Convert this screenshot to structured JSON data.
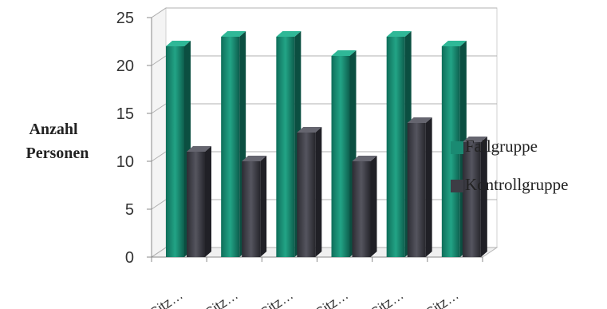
{
  "chart_data": {
    "type": "bar",
    "categories": [
      "Sitz…",
      "Sitz…",
      "Sitz…",
      "Sitz…",
      "Sitz…",
      "Sitz…"
    ],
    "series": [
      {
        "name": "Fallgruppe",
        "values": [
          22,
          23,
          23,
          21,
          23,
          22
        ],
        "color": "#1a8a72"
      },
      {
        "name": "Kontrollgruppe",
        "values": [
          11,
          10,
          13,
          10,
          14,
          12
        ],
        "color": "#3d3d45"
      }
    ],
    "title": "",
    "xlabel": "",
    "ylabel": [
      "Anzahl",
      "Personen"
    ],
    "ylim": [
      0,
      25
    ],
    "yticks": [
      "0",
      "5",
      "10",
      "15",
      "20",
      "25"
    ],
    "grid": true,
    "style": "3d-column",
    "legend_position": "right"
  }
}
